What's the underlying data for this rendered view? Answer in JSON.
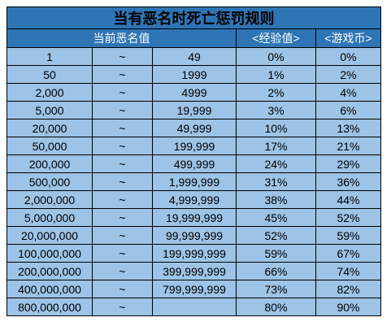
{
  "table": {
    "title": "当有恶名时死亡惩罚规则",
    "headers": {
      "infamy": "当前恶名值",
      "exp": "<经验值>",
      "coin": "<游戏币>"
    },
    "rows": [
      {
        "from": "1",
        "sep": "~",
        "to": "49",
        "exp": "0%",
        "coin": "0%"
      },
      {
        "from": "50",
        "sep": "~",
        "to": "1999",
        "exp": "1%",
        "coin": "2%"
      },
      {
        "from": "2,000",
        "sep": "~",
        "to": "4999",
        "exp": "2%",
        "coin": "4%"
      },
      {
        "from": "5,000",
        "sep": "~",
        "to": "19,999",
        "exp": "3%",
        "coin": "6%"
      },
      {
        "from": "20,000",
        "sep": "~",
        "to": "49,999",
        "exp": "10%",
        "coin": "13%"
      },
      {
        "from": "50,000",
        "sep": "~",
        "to": "199,999",
        "exp": "17%",
        "coin": "21%"
      },
      {
        "from": "200,000",
        "sep": "~",
        "to": "499,999",
        "exp": "24%",
        "coin": "29%"
      },
      {
        "from": "500,000",
        "sep": "~",
        "to": "1,999,999",
        "exp": "31%",
        "coin": "36%"
      },
      {
        "from": "2,000,000",
        "sep": "~",
        "to": "4,999,999",
        "exp": "38%",
        "coin": "44%"
      },
      {
        "from": "5,000,000",
        "sep": "~",
        "to": "19,999,999",
        "exp": "45%",
        "coin": "52%"
      },
      {
        "from": "20,000,000",
        "sep": "~",
        "to": "99,999,999",
        "exp": "52%",
        "coin": "59%"
      },
      {
        "from": "100,000,000",
        "sep": "~",
        "to": "199,999,999",
        "exp": "59%",
        "coin": "67%"
      },
      {
        "from": "200,000,000",
        "sep": "~",
        "to": "399,999,999",
        "exp": "66%",
        "coin": "74%"
      },
      {
        "from": "400,000,000",
        "sep": "~",
        "to": "799,999,999",
        "exp": "73%",
        "coin": "82%"
      },
      {
        "from": "800,000,000",
        "sep": "~",
        "to": "",
        "exp": "80%",
        "coin": "90%"
      }
    ]
  }
}
